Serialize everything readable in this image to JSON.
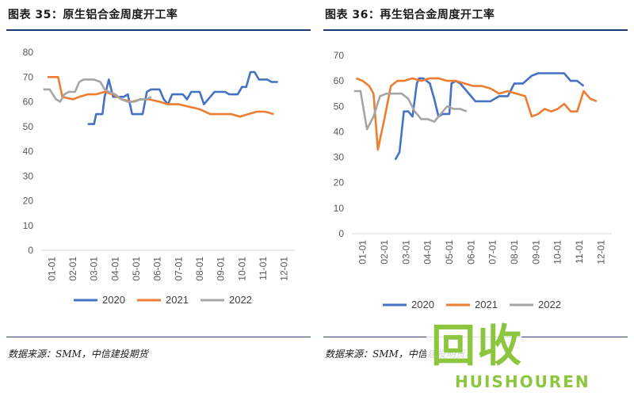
{
  "source_text": "数据来源：SMM，中信建投期货",
  "watermark": {
    "text": "回收",
    "subtext": "HUISHOUREN"
  },
  "colors": {
    "s2020": "#4472c4",
    "s2021": "#ed7d31",
    "s2022": "#a5a5a5",
    "axis": "#d9d9d9",
    "rule": "#1f3b73"
  },
  "chart_data": [
    {
      "type": "line",
      "title": "图表 35：原生铝合金周度开工率",
      "xlabel": "",
      "ylabel": "",
      "categories": [
        "01-01",
        "02-01",
        "03-01",
        "04-01",
        "05-01",
        "06-01",
        "07-01",
        "08-01",
        "09-01",
        "10-01",
        "11-01",
        "12-01"
      ],
      "ylim": [
        0,
        80
      ],
      "yticks": [
        0,
        10,
        20,
        30,
        40,
        50,
        60,
        70,
        80
      ],
      "grid": false,
      "legend": "bottom",
      "series": [
        {
          "name": "2020",
          "values": [
            [
              2.2,
              51
            ],
            [
              2.5,
              51
            ],
            [
              2.6,
              55
            ],
            [
              2.9,
              55
            ],
            [
              3.0,
              62
            ],
            [
              3.2,
              69
            ],
            [
              3.4,
              62
            ],
            [
              3.9,
              62
            ],
            [
              4.1,
              63
            ],
            [
              4.3,
              55
            ],
            [
              4.8,
              55
            ],
            [
              5.0,
              64
            ],
            [
              5.2,
              65
            ],
            [
              5.6,
              65
            ],
            [
              5.8,
              61
            ],
            [
              6.0,
              59
            ],
            [
              6.2,
              63
            ],
            [
              6.7,
              63
            ],
            [
              6.9,
              61
            ],
            [
              7.1,
              64
            ],
            [
              7.5,
              64
            ],
            [
              7.7,
              59
            ],
            [
              8.0,
              62
            ],
            [
              8.2,
              64
            ],
            [
              8.7,
              64
            ],
            [
              8.9,
              63
            ],
            [
              9.3,
              63
            ],
            [
              9.5,
              66
            ],
            [
              9.7,
              66
            ],
            [
              9.9,
              72
            ],
            [
              10.1,
              72
            ],
            [
              10.3,
              69
            ],
            [
              10.7,
              69
            ],
            [
              10.9,
              68
            ],
            [
              11.2,
              68
            ]
          ]
        },
        {
          "name": "2021",
          "values": [
            [
              0.3,
              70
            ],
            [
              0.8,
              70
            ],
            [
              1.0,
              62
            ],
            [
              1.5,
              61
            ],
            [
              1.8,
              62
            ],
            [
              2.2,
              63
            ],
            [
              2.6,
              63
            ],
            [
              3.0,
              64
            ],
            [
              3.4,
              63
            ],
            [
              3.8,
              61
            ],
            [
              4.3,
              60
            ],
            [
              4.7,
              61
            ],
            [
              5.1,
              61
            ],
            [
              5.6,
              60
            ],
            [
              6.0,
              59
            ],
            [
              6.5,
              59
            ],
            [
              7.0,
              58
            ],
            [
              7.5,
              57
            ],
            [
              8.0,
              55
            ],
            [
              8.5,
              55
            ],
            [
              9.0,
              55
            ],
            [
              9.4,
              54
            ],
            [
              9.8,
              55
            ],
            [
              10.2,
              56
            ],
            [
              10.6,
              56
            ],
            [
              11.0,
              55
            ]
          ]
        },
        {
          "name": "2022",
          "values": [
            [
              0.1,
              65
            ],
            [
              0.4,
              65
            ],
            [
              0.7,
              61
            ],
            [
              0.9,
              60
            ],
            [
              1.1,
              63
            ],
            [
              1.3,
              64
            ],
            [
              1.6,
              64
            ],
            [
              1.8,
              68
            ],
            [
              2.0,
              69
            ],
            [
              2.5,
              69
            ],
            [
              2.8,
              68
            ],
            [
              3.0,
              65
            ],
            [
              3.2,
              64
            ],
            [
              3.5,
              63
            ],
            [
              3.8,
              61
            ],
            [
              4.1,
              60
            ],
            [
              4.4,
              60
            ],
            [
              4.7,
              61
            ],
            [
              5.0,
              61
            ],
            [
              5.2,
              62
            ]
          ]
        }
      ]
    },
    {
      "type": "line",
      "title": "图表 36：再生铝合金周度开工率",
      "xlabel": "",
      "ylabel": "",
      "categories": [
        "01-01",
        "02-01",
        "03-01",
        "04-01",
        "05-01",
        "06-01",
        "07-01",
        "08-01",
        "09-01",
        "10-01",
        "11-01",
        "12-01"
      ],
      "ylim": [
        0,
        70
      ],
      "yticks": [
        0,
        10,
        20,
        30,
        40,
        50,
        60,
        70
      ],
      "grid": false,
      "legend": "bottom",
      "series": [
        {
          "name": "2020",
          "values": [
            [
              2.0,
              29
            ],
            [
              2.2,
              32
            ],
            [
              2.4,
              48
            ],
            [
              2.6,
              48
            ],
            [
              2.8,
              46
            ],
            [
              3.0,
              59
            ],
            [
              3.1,
              61
            ],
            [
              3.3,
              61
            ],
            [
              3.6,
              59
            ],
            [
              3.8,
              53
            ],
            [
              4.0,
              46
            ],
            [
              4.2,
              47
            ],
            [
              4.5,
              47
            ],
            [
              4.6,
              59
            ],
            [
              4.8,
              60
            ],
            [
              5.0,
              59
            ],
            [
              5.3,
              56
            ],
            [
              5.7,
              52
            ],
            [
              6.0,
              52
            ],
            [
              6.4,
              52
            ],
            [
              6.8,
              54
            ],
            [
              7.2,
              54
            ],
            [
              7.5,
              59
            ],
            [
              7.9,
              59
            ],
            [
              8.3,
              62
            ],
            [
              8.6,
              63
            ],
            [
              9.0,
              63
            ],
            [
              9.4,
              63
            ],
            [
              9.8,
              63
            ],
            [
              10.1,
              60
            ],
            [
              10.4,
              60
            ],
            [
              10.7,
              58
            ]
          ]
        },
        {
          "name": "2021",
          "values": [
            [
              0.2,
              61
            ],
            [
              0.5,
              60
            ],
            [
              0.8,
              58
            ],
            [
              1.0,
              55
            ],
            [
              1.2,
              33
            ],
            [
              1.5,
              45
            ],
            [
              1.8,
              58
            ],
            [
              2.1,
              60
            ],
            [
              2.4,
              60
            ],
            [
              2.8,
              61
            ],
            [
              3.2,
              60
            ],
            [
              3.6,
              61
            ],
            [
              4.0,
              61
            ],
            [
              4.4,
              60
            ],
            [
              4.8,
              60
            ],
            [
              5.2,
              59
            ],
            [
              5.6,
              58
            ],
            [
              6.0,
              58
            ],
            [
              6.4,
              57
            ],
            [
              6.8,
              55
            ],
            [
              7.2,
              56
            ],
            [
              7.6,
              55
            ],
            [
              8.0,
              54
            ],
            [
              8.3,
              46
            ],
            [
              8.6,
              47
            ],
            [
              8.9,
              49
            ],
            [
              9.2,
              48
            ],
            [
              9.5,
              49
            ],
            [
              9.8,
              51
            ],
            [
              10.1,
              48
            ],
            [
              10.4,
              48
            ],
            [
              10.7,
              56
            ],
            [
              11.0,
              53
            ],
            [
              11.3,
              52
            ]
          ]
        },
        {
          "name": "2022",
          "values": [
            [
              0.1,
              56
            ],
            [
              0.4,
              56
            ],
            [
              0.7,
              41
            ],
            [
              1.0,
              46
            ],
            [
              1.3,
              54
            ],
            [
              1.6,
              55
            ],
            [
              2.0,
              55
            ],
            [
              2.3,
              55
            ],
            [
              2.6,
              53
            ],
            [
              2.9,
              48
            ],
            [
              3.2,
              45
            ],
            [
              3.5,
              45
            ],
            [
              3.8,
              44
            ],
            [
              4.1,
              47
            ],
            [
              4.4,
              50
            ],
            [
              4.7,
              49
            ],
            [
              5.0,
              49
            ],
            [
              5.3,
              48
            ]
          ]
        }
      ]
    }
  ]
}
